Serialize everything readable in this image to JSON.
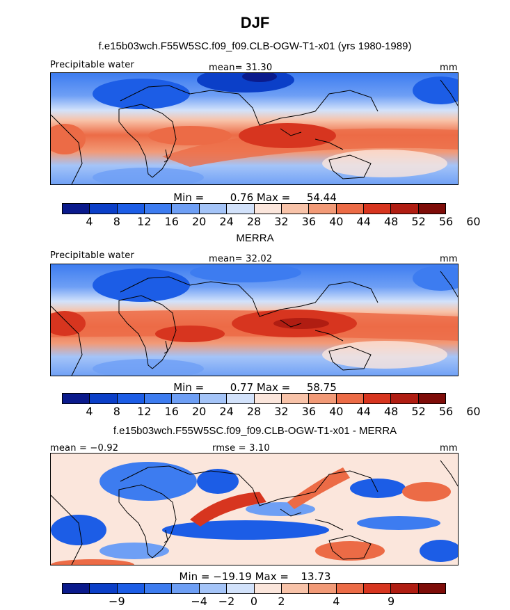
{
  "figure": {
    "title": "DJF",
    "colors": {
      "precip_scale": [
        "#0a1a8c",
        "#0b3fc8",
        "#1c5de6",
        "#3d7cf0",
        "#6e9ff5",
        "#a4c4f8",
        "#d2e2fb",
        "#fbe6dc",
        "#f8c3a9",
        "#f29a77",
        "#ec6b46",
        "#d7351f",
        "#b01d12",
        "#7e0c08"
      ],
      "diff_scale": [
        "#0a1a8c",
        "#0b3fc8",
        "#1c5de6",
        "#3d7cf0",
        "#6e9ff5",
        "#a4c4f8",
        "#d2e2fb",
        "#fbe6dc",
        "#f8c3a9",
        "#f29a77",
        "#ec6b46",
        "#d7351f",
        "#b01d12",
        "#7e0c08"
      ]
    }
  },
  "panel1": {
    "subtitle": "f.e15b03wch.F55W5SC.f09_f09.CLB-OGW-T1-x01 (yrs 1980-1989)",
    "left_label": "Precipitable water",
    "center_label": "mean=  31.30",
    "units": "mm",
    "min_label": "Min =",
    "min_value": "0.76",
    "max_label": "Max =",
    "max_value": "54.44",
    "ticks": [
      "4",
      "8",
      "12",
      "16",
      "20",
      "24",
      "28",
      "32",
      "36",
      "40",
      "44",
      "48",
      "52",
      "56",
      "60"
    ]
  },
  "panel2": {
    "subtitle": "MERRA",
    "left_label": "Precipitable water",
    "center_label": "mean=  32.02",
    "units": "mm",
    "min_label": "Min =",
    "min_value": "0.77",
    "max_label": "Max =",
    "max_value": "58.75",
    "ticks": [
      "4",
      "8",
      "12",
      "16",
      "20",
      "24",
      "28",
      "32",
      "36",
      "40",
      "44",
      "48",
      "52",
      "56",
      "60"
    ]
  },
  "panel3": {
    "subtitle": "f.e15b03wch.F55W5SC.f09_f09.CLB-OGW-T1-x01 - MERRA",
    "left_label": "mean = −0.92",
    "center_label": "rmse =   3.10",
    "units": "mm",
    "min_label": "Min =",
    "min_value": "−19.19",
    "max_label": "Max =",
    "max_value": "13.73",
    "ticks": [
      "−9",
      "−4",
      "−2",
      "0",
      "2",
      "4",
      "9"
    ]
  }
}
